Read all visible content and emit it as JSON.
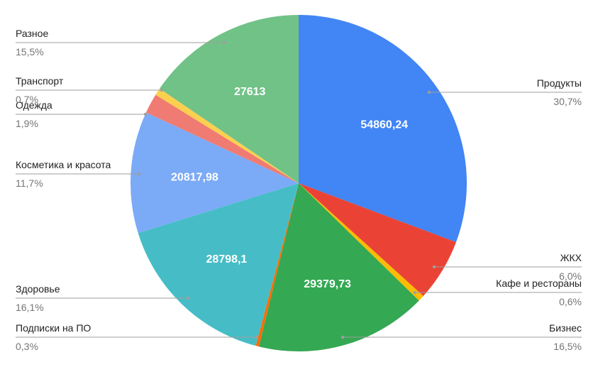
{
  "chart_data": {
    "type": "pie",
    "title": "",
    "slices": [
      {
        "name": "Продукты",
        "percent_label": "30,7%",
        "percent": 30.7,
        "value_label": "54860,24",
        "color": "#4285F4"
      },
      {
        "name": "ЖКХ",
        "percent_label": "6,0%",
        "percent": 6.0,
        "value_label": "",
        "color": "#EA4335"
      },
      {
        "name": "Кафе и рестораны",
        "percent_label": "0,6%",
        "percent": 0.6,
        "value_label": "",
        "color": "#FBBC04"
      },
      {
        "name": "Бизнес",
        "percent_label": "16,5%",
        "percent": 16.5,
        "value_label": "29379,73",
        "color": "#34A853"
      },
      {
        "name": "Подписки на ПО",
        "percent_label": "0,3%",
        "percent": 0.3,
        "value_label": "",
        "color": "#FF6D01"
      },
      {
        "name": "Здоровье",
        "percent_label": "16,1%",
        "percent": 16.1,
        "value_label": "28798,1",
        "color": "#46BDC6"
      },
      {
        "name": "Косметика и красота",
        "percent_label": "11,7%",
        "percent": 11.7,
        "value_label": "20817,98",
        "color": "#7BAAF7"
      },
      {
        "name": "Одежда",
        "percent_label": "1,9%",
        "percent": 1.9,
        "value_label": "",
        "color": "#F07B72"
      },
      {
        "name": "Транспорт",
        "percent_label": "0,7%",
        "percent": 0.7,
        "value_label": "",
        "color": "#FCD04F"
      },
      {
        "name": "Разное",
        "percent_label": "15,5%",
        "percent": 15.5,
        "value_label": "27613",
        "color": "#71C287"
      }
    ],
    "legend": "callout labels beside slices",
    "leader_line_color": "#9E9E9E"
  }
}
